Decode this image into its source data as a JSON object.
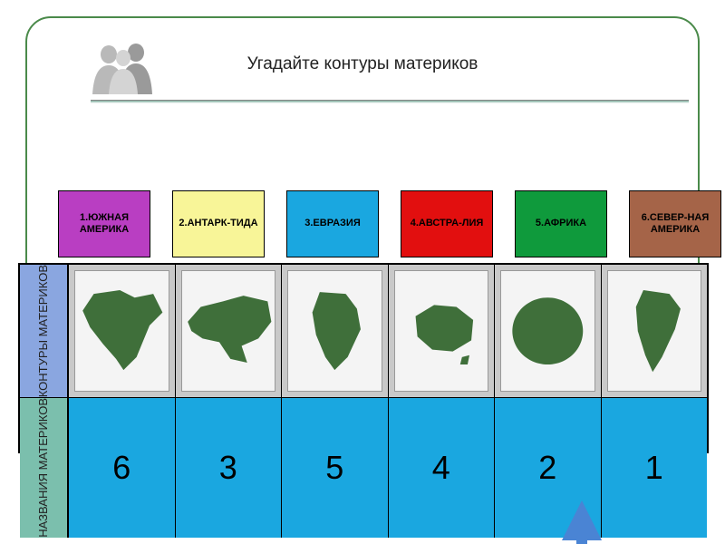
{
  "title": "Угадайте контуры материков",
  "labels": [
    {
      "text": "1.ЮЖНАЯ АМЕРИКА",
      "bg": "#b93ec2",
      "fg": "#000000"
    },
    {
      "text": "2.АНТАРК-ТИДА",
      "bg": "#f8f598",
      "fg": "#000000"
    },
    {
      "text": "3.ЕВРАЗИЯ",
      "bg": "#1aa7e0",
      "fg": "#000000"
    },
    {
      "text": "4.АВСТРА-ЛИЯ",
      "bg": "#e20f0f",
      "fg": "#000000"
    },
    {
      "text": "5.АФРИКА",
      "bg": "#0f9a3c",
      "fg": "#000000"
    },
    {
      "text": "6.СЕВЕР-НАЯ АМЕРИКА",
      "bg": "#a56448",
      "fg": "#000000"
    }
  ],
  "row_headers": {
    "contours": {
      "text": "КОНТУРЫ МАТЕРИКОВ",
      "bg": "#8aa6e0"
    },
    "names": {
      "text": "НАЗВАНИЯ МАТЕРИКОВ",
      "bg": "#7bbfad"
    }
  },
  "maps": [
    {
      "name": "north-america"
    },
    {
      "name": "eurasia"
    },
    {
      "name": "africa"
    },
    {
      "name": "australia"
    },
    {
      "name": "antarctica"
    },
    {
      "name": "south-america"
    }
  ],
  "answers": [
    "6",
    "3",
    "5",
    "4",
    "2",
    "1"
  ],
  "colors": {
    "continent_fill": "#3f6f3a",
    "card_border": "#4a8a4a",
    "answer_bg": "#1aa7e0",
    "arrow": "#4a84d4"
  }
}
